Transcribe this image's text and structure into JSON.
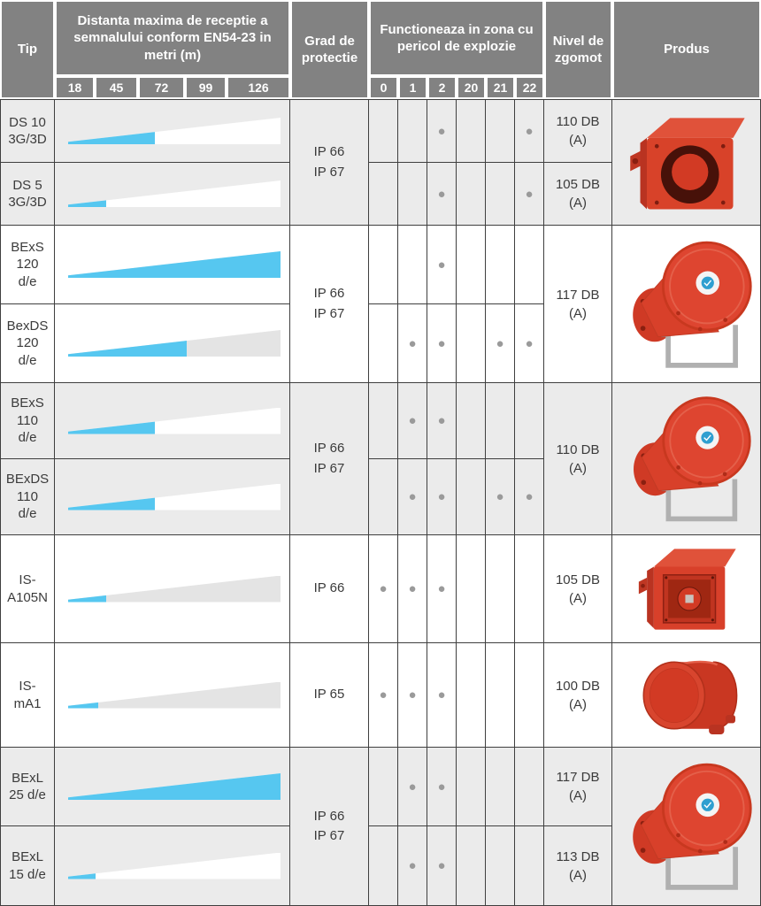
{
  "table": {
    "header": {
      "tip": "Tip",
      "distance": "Distanta maxima de receptie a semnalului conform EN54-23 in metri (m)",
      "distance_scale": [
        "18",
        "45",
        "72",
        "99",
        "126"
      ],
      "protection": "Grad de protectie",
      "zones": "Functioneaza in zona cu pericol de explozie",
      "zone_numbers": [
        "0",
        "1",
        "2",
        "20",
        "21",
        "22"
      ],
      "noise": "Nivel de zgomot",
      "product": "Produs"
    },
    "groups": [
      {
        "ip": [
          "IP 66",
          "IP 67"
        ],
        "product": "cube-sounder",
        "rows": [
          {
            "tip": [
              "DS 10",
              "3G/3D"
            ],
            "wedge_pct": 41,
            "zones": [
              "",
              "",
              "●",
              "",
              "",
              "●"
            ],
            "noise": [
              "110 DB",
              "(A)"
            ]
          },
          {
            "tip": [
              "DS 5",
              "3G/3D"
            ],
            "wedge_pct": 18,
            "zones": [
              "",
              "",
              "●",
              "",
              "",
              "●"
            ],
            "noise": [
              "105 DB",
              "(A)"
            ]
          }
        ]
      },
      {
        "ip": [
          "IP 66",
          "IP 67"
        ],
        "product": "horn-sounder",
        "noise": [
          "117 DB",
          "(A)"
        ],
        "rows": [
          {
            "tip": [
              "BExS",
              "120",
              "d/e"
            ],
            "wedge_pct": 100,
            "zones": [
              "",
              "",
              "●",
              "",
              "",
              ""
            ]
          },
          {
            "tip": [
              "BexDS",
              "120",
              "d/e"
            ],
            "wedge_pct": 56,
            "zones": [
              "",
              "●",
              "●",
              "",
              "●",
              "●"
            ]
          }
        ]
      },
      {
        "ip": [
          "IP 66",
          "IP 67"
        ],
        "product": "horn-sounder",
        "noise": [
          "110 DB",
          "(A)"
        ],
        "rows": [
          {
            "tip": [
              "BExS",
              "110",
              "d/e"
            ],
            "wedge_pct": 41,
            "zones": [
              "",
              "●",
              "●",
              "",
              "",
              ""
            ]
          },
          {
            "tip": [
              "BExDS",
              "110",
              "d/e"
            ],
            "wedge_pct": 41,
            "zones": [
              "",
              "●",
              "●",
              "",
              "●",
              "●"
            ]
          }
        ]
      },
      {
        "ip": [
          "IP 66"
        ],
        "product": "cube-horn-sounder",
        "rows": [
          {
            "tip": [
              "IS-",
              "A105N"
            ],
            "wedge_pct": 18,
            "zones": [
              "●",
              "●",
              "●",
              "",
              "",
              ""
            ],
            "noise": [
              "105 DB",
              "(A)"
            ]
          }
        ]
      },
      {
        "ip": [
          "IP 65"
        ],
        "product": "cylinder-sounder",
        "rows": [
          {
            "tip": [
              "IS-",
              "mA1"
            ],
            "wedge_pct": 14,
            "zones": [
              "●",
              "●",
              "●",
              "",
              "",
              ""
            ],
            "noise": [
              "100 DB",
              "(A)"
            ]
          }
        ]
      },
      {
        "ip": [
          "IP 66",
          "IP 67"
        ],
        "product": "horn-sounder",
        "rows": [
          {
            "tip": [
              "BExL",
              "25 d/e"
            ],
            "wedge_pct": 100,
            "zones": [
              "",
              "●",
              "●",
              "",
              "",
              ""
            ],
            "noise": [
              "117 DB",
              "(A)"
            ]
          },
          {
            "tip": [
              "BExL",
              "15 d/e"
            ],
            "wedge_pct": 13,
            "zones": [
              "",
              "●",
              "●",
              "",
              "",
              ""
            ],
            "noise": [
              "113 DB",
              "(A)"
            ]
          }
        ]
      }
    ],
    "colors": {
      "header_bg": "#828282",
      "band_gray": "#ebebeb",
      "wedge_blue": "#56c7f0",
      "wedge_rest_gray": "#e4e4e4",
      "dot_gray": "#9a9a9a",
      "product_red": "#d8402a",
      "grid_line": "#3f3f3f"
    }
  }
}
